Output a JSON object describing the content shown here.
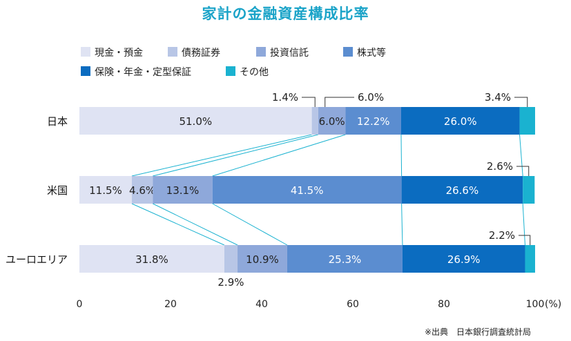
{
  "chart_data": {
    "type": "bar",
    "orientation": "horizontal",
    "stacked": true,
    "title": "家計の金融資産構成比率",
    "categories": [
      "日本",
      "米国",
      "ユーロエリア"
    ],
    "series": [
      {
        "name": "現金・預金",
        "values": [
          51.0,
          11.5,
          31.8
        ],
        "labels": [
          "51.0%",
          "11.5%",
          "31.8%"
        ],
        "color": "#dfe3f3",
        "text_color": "#222222"
      },
      {
        "name": "債務証券",
        "values": [
          1.4,
          4.6,
          2.9
        ],
        "labels": [
          "1.4%",
          "4.6%",
          "2.9%"
        ],
        "color": "#b8c6e6",
        "text_color": "#222222"
      },
      {
        "name": "投資信託",
        "values": [
          6.0,
          13.1,
          10.9
        ],
        "labels": [
          "6.0%",
          "13.1%",
          "10.9%"
        ],
        "color": "#8ea8da",
        "text_color": "#222222"
      },
      {
        "name": "株式等",
        "values": [
          12.2,
          41.5,
          25.3
        ],
        "labels": [
          "12.2%",
          "41.5%",
          "25.3%"
        ],
        "color": "#5b8dd0",
        "text_color": "#ffffff"
      },
      {
        "name": "保険・年金・定型保証",
        "values": [
          26.0,
          26.6,
          26.9
        ],
        "labels": [
          "26.0%",
          "26.6%",
          "26.9%"
        ],
        "color": "#0b6cc0",
        "text_color": "#ffffff"
      },
      {
        "name": "その他",
        "values": [
          3.4,
          2.6,
          2.2
        ],
        "labels": [
          "3.4%",
          "2.6%",
          "2.2%"
        ],
        "color": "#1ab2d0",
        "text_color": "#222222"
      }
    ],
    "xlim": [
      0,
      100
    ],
    "xticks": [
      "0",
      "20",
      "40",
      "60",
      "80",
      "100"
    ],
    "xunit": "(%)",
    "legend_position": "top-left",
    "connector_color": "#1ab2d0"
  },
  "source_note": "※出典　日本銀行調査統計局"
}
